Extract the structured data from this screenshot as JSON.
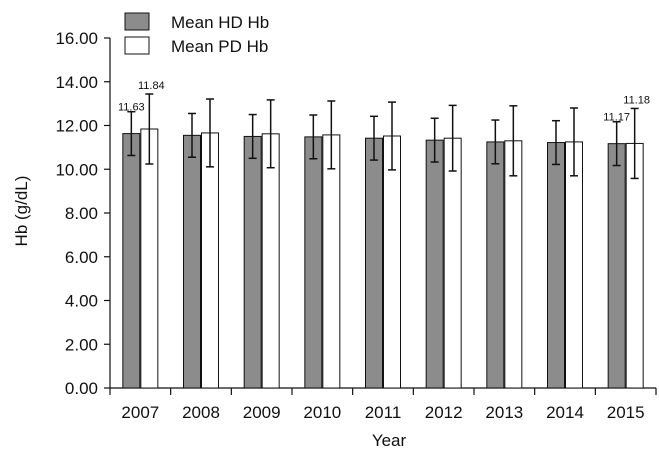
{
  "chart_data": {
    "type": "bar",
    "xlabel": "Year",
    "ylabel": "Hb (g/dL)",
    "ylim": [
      0,
      16
    ],
    "yticks": [
      "0.00",
      "2.00",
      "4.00",
      "6.00",
      "8.00",
      "10.00",
      "12.00",
      "14.00",
      "16.00"
    ],
    "categories": [
      "2007",
      "2008",
      "2009",
      "2010",
      "2011",
      "2012",
      "2013",
      "2014",
      "2015"
    ],
    "grid": false,
    "legend_position": "top-left",
    "error_bars": true,
    "series": [
      {
        "name": "Mean HD Hb",
        "color": "#8c8c8c",
        "values": [
          11.63,
          11.55,
          11.5,
          11.48,
          11.42,
          11.33,
          11.25,
          11.22,
          11.17
        ],
        "error": [
          1.0,
          1.0,
          1.0,
          1.0,
          1.0,
          1.0,
          1.0,
          1.0,
          1.0
        ],
        "data_labels": [
          "11.63",
          "",
          "",
          "",
          "",
          "",
          "",
          "",
          "11.17"
        ]
      },
      {
        "name": "Mean PD Hb",
        "color": "#ffffff",
        "values": [
          11.84,
          11.66,
          11.62,
          11.57,
          11.52,
          11.42,
          11.3,
          11.25,
          11.18
        ],
        "error": [
          1.6,
          1.55,
          1.55,
          1.55,
          1.55,
          1.5,
          1.6,
          1.55,
          1.6
        ],
        "data_labels": [
          "11.84",
          "",
          "",
          "",
          "",
          "",
          "",
          "",
          "11.18"
        ]
      }
    ]
  }
}
